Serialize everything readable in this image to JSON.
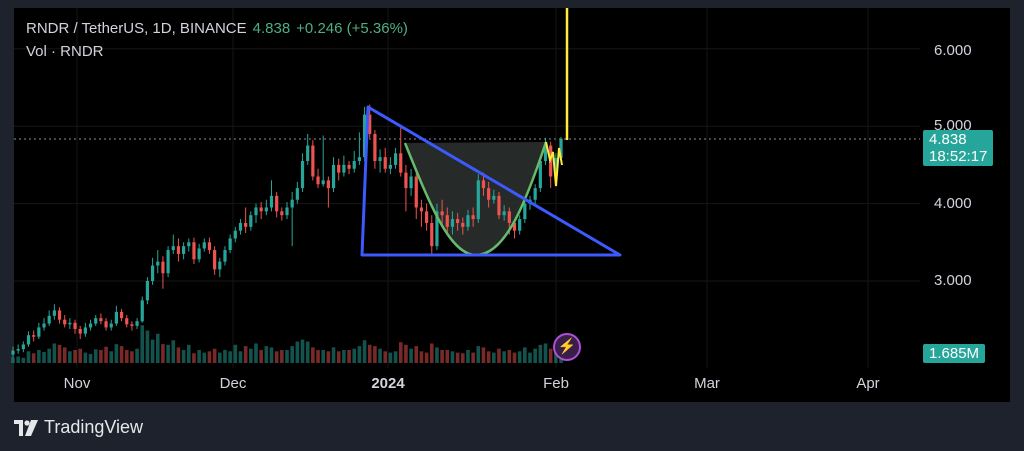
{
  "header": {
    "symbol": "RNDR / TetherUS, 1D, BINANCE",
    "last_price": "4.838",
    "change": "+0.246 (+5.36%)",
    "volume_label": "Vol · RNDR"
  },
  "price_axis": {
    "ticks": [
      "6.000",
      "5.000",
      "4.000",
      "3.000"
    ],
    "last_price_badge": "4.838",
    "countdown": "18:52:17",
    "volume_badge": "1.685M"
  },
  "time_axis": {
    "labels": [
      "Nov",
      "Dec",
      "2024",
      "Feb",
      "Mar",
      "Apr"
    ]
  },
  "footer": {
    "brand": "TradingView"
  },
  "colors": {
    "up": "#26a69a",
    "down": "#ef5350",
    "triangle": "#3d5afe",
    "cup": "#66bb6a",
    "marker": "#ffeb3b",
    "background": "#000000"
  },
  "icons": {
    "bolt_button": "lightning-icon",
    "logo": "tradingview-logo"
  },
  "chart_data": {
    "type": "candlestick",
    "title": "RNDR / TetherUS, 1D, BINANCE",
    "start_date": "2023-10-19",
    "ylim": [
      2.0,
      6.4
    ],
    "x_ticks": [
      "Nov",
      "Dec",
      "2024",
      "Feb",
      "Mar",
      "Apr"
    ],
    "y_ticks": [
      3,
      4,
      5,
      6
    ],
    "grid": true,
    "ohlc": [
      [
        2.05,
        2.15,
        2.02,
        2.1
      ],
      [
        2.1,
        2.18,
        2.06,
        2.12
      ],
      [
        2.12,
        2.22,
        2.08,
        2.18
      ],
      [
        2.18,
        2.35,
        2.15,
        2.3
      ],
      [
        2.3,
        2.36,
        2.22,
        2.28
      ],
      [
        2.28,
        2.46,
        2.25,
        2.4
      ],
      [
        2.4,
        2.52,
        2.36,
        2.45
      ],
      [
        2.45,
        2.62,
        2.42,
        2.55
      ],
      [
        2.55,
        2.7,
        2.5,
        2.62
      ],
      [
        2.62,
        2.66,
        2.45,
        2.5
      ],
      [
        2.5,
        2.56,
        2.4,
        2.44
      ],
      [
        2.44,
        2.52,
        2.38,
        2.46
      ],
      [
        2.46,
        2.5,
        2.32,
        2.38
      ],
      [
        2.38,
        2.42,
        2.25,
        2.32
      ],
      [
        2.32,
        2.46,
        2.28,
        2.4
      ],
      [
        2.4,
        2.5,
        2.36,
        2.45
      ],
      [
        2.45,
        2.56,
        2.42,
        2.52
      ],
      [
        2.52,
        2.58,
        2.44,
        2.48
      ],
      [
        2.48,
        2.52,
        2.36,
        2.4
      ],
      [
        2.4,
        2.5,
        2.36,
        2.45
      ],
      [
        2.45,
        2.68,
        2.42,
        2.6
      ],
      [
        2.6,
        2.64,
        2.48,
        2.52
      ],
      [
        2.52,
        2.56,
        2.4,
        2.44
      ],
      [
        2.44,
        2.48,
        2.36,
        2.42
      ],
      [
        2.42,
        2.52,
        2.38,
        2.48
      ],
      [
        2.48,
        2.8,
        2.46,
        2.75
      ],
      [
        2.75,
        3.05,
        2.7,
        3.0
      ],
      [
        3.0,
        3.3,
        2.95,
        3.2
      ],
      [
        3.2,
        3.4,
        3.1,
        3.25
      ],
      [
        3.25,
        3.32,
        2.9,
        3.1
      ],
      [
        3.1,
        3.45,
        3.05,
        3.4
      ],
      [
        3.4,
        3.6,
        3.35,
        3.45
      ],
      [
        3.45,
        3.55,
        3.25,
        3.35
      ],
      [
        3.35,
        3.5,
        3.28,
        3.45
      ],
      [
        3.45,
        3.55,
        3.38,
        3.5
      ],
      [
        3.5,
        3.56,
        3.22,
        3.28
      ],
      [
        3.28,
        3.48,
        3.24,
        3.42
      ],
      [
        3.42,
        3.55,
        3.38,
        3.5
      ],
      [
        3.5,
        3.56,
        3.35,
        3.4
      ],
      [
        3.4,
        3.45,
        3.08,
        3.15
      ],
      [
        3.15,
        3.3,
        3.05,
        3.25
      ],
      [
        3.25,
        3.45,
        3.2,
        3.4
      ],
      [
        3.4,
        3.6,
        3.36,
        3.55
      ],
      [
        3.55,
        3.7,
        3.5,
        3.65
      ],
      [
        3.65,
        3.8,
        3.6,
        3.75
      ],
      [
        3.75,
        3.95,
        3.62,
        3.7
      ],
      [
        3.7,
        3.9,
        3.65,
        3.85
      ],
      [
        3.85,
        4.0,
        3.75,
        3.95
      ],
      [
        3.95,
        4.02,
        3.8,
        3.9
      ],
      [
        3.9,
        4.05,
        3.85,
        3.95
      ],
      [
        3.95,
        4.3,
        3.9,
        4.1
      ],
      [
        4.1,
        4.15,
        3.82,
        3.9
      ],
      [
        3.9,
        3.95,
        3.78,
        3.85
      ],
      [
        3.85,
        4.02,
        3.8,
        3.95
      ],
      [
        3.95,
        4.15,
        3.45,
        4.05
      ],
      [
        4.05,
        4.28,
        4.0,
        4.2
      ],
      [
        4.2,
        4.65,
        4.15,
        4.55
      ],
      [
        4.55,
        4.9,
        4.5,
        4.75
      ],
      [
        4.75,
        4.82,
        4.3,
        4.35
      ],
      [
        4.35,
        4.45,
        4.2,
        4.25
      ],
      [
        4.25,
        4.88,
        4.22,
        4.3
      ],
      [
        4.3,
        4.35,
        3.95,
        4.2
      ],
      [
        4.2,
        4.6,
        4.15,
        4.5
      ],
      [
        4.5,
        4.58,
        4.3,
        4.4
      ],
      [
        4.4,
        4.62,
        4.35,
        4.5
      ],
      [
        4.5,
        4.55,
        4.38,
        4.45
      ],
      [
        4.45,
        4.68,
        4.4,
        4.55
      ],
      [
        4.55,
        4.92,
        4.5,
        4.6
      ],
      [
        4.6,
        5.25,
        4.55,
        5.15
      ],
      [
        5.15,
        5.28,
        4.85,
        4.9
      ],
      [
        4.9,
        4.95,
        4.45,
        4.55
      ],
      [
        4.55,
        4.7,
        4.4,
        4.6
      ],
      [
        4.6,
        4.72,
        4.4,
        4.45
      ],
      [
        4.45,
        4.6,
        4.38,
        4.5
      ],
      [
        4.5,
        4.72,
        4.45,
        4.65
      ],
      [
        4.65,
        5.02,
        4.35,
        4.4
      ],
      [
        4.4,
        4.5,
        3.9,
        4.2
      ],
      [
        4.2,
        4.45,
        4.1,
        4.35
      ],
      [
        4.35,
        4.4,
        3.8,
        3.95
      ],
      [
        3.95,
        4.05,
        3.7,
        3.9
      ],
      [
        3.9,
        4.0,
        3.65,
        3.75
      ],
      [
        3.75,
        3.85,
        3.35,
        3.45
      ],
      [
        3.45,
        4.0,
        3.4,
        3.9
      ],
      [
        3.9,
        4.05,
        3.7,
        3.85
      ],
      [
        3.85,
        3.95,
        3.6,
        3.7
      ],
      [
        3.7,
        3.9,
        3.6,
        3.8
      ],
      [
        3.8,
        3.88,
        3.65,
        3.75
      ],
      [
        3.75,
        3.82,
        3.6,
        3.7
      ],
      [
        3.7,
        3.92,
        3.65,
        3.85
      ],
      [
        3.85,
        3.95,
        3.7,
        3.8
      ],
      [
        3.8,
        4.38,
        3.75,
        4.3
      ],
      [
        4.3,
        4.4,
        4.1,
        4.2
      ],
      [
        4.2,
        4.28,
        3.95,
        4.05
      ],
      [
        4.05,
        4.18,
        4.0,
        4.1
      ],
      [
        4.1,
        4.15,
        3.8,
        3.85
      ],
      [
        3.85,
        3.98,
        3.78,
        3.9
      ],
      [
        3.9,
        3.95,
        3.6,
        3.75
      ],
      [
        3.75,
        3.8,
        3.55,
        3.65
      ],
      [
        3.65,
        3.85,
        3.6,
        3.8
      ],
      [
        3.8,
        4.05,
        3.75,
        4.0
      ],
      [
        4.0,
        4.1,
        3.92,
        4.05
      ],
      [
        4.05,
        4.25,
        4.0,
        4.2
      ],
      [
        4.2,
        4.6,
        4.15,
        4.55
      ],
      [
        4.55,
        4.85,
        4.5,
        4.75
      ],
      [
        4.75,
        4.8,
        4.2,
        4.35
      ],
      [
        4.35,
        4.65,
        4.3,
        4.59
      ],
      [
        4.59,
        4.86,
        4.55,
        4.838
      ]
    ],
    "volume_millions": [
      0.9,
      1.0,
      0.8,
      1.8,
      1.5,
      2.0,
      1.7,
      2.2,
      3.0,
      2.8,
      2.4,
      1.8,
      2.0,
      2.2,
      1.6,
      1.4,
      2.1,
      2.0,
      2.5,
      1.8,
      2.9,
      2.6,
      2.0,
      1.8,
      2.2,
      5.8,
      5.0,
      3.6,
      4.5,
      2.9,
      2.8,
      3.5,
      2.4,
      2.0,
      2.8,
      1.5,
      2.0,
      1.6,
      1.8,
      2.2,
      1.6,
      2.0,
      1.8,
      2.8,
      1.8,
      2.6,
      2.2,
      3.0,
      2.0,
      2.6,
      2.4,
      1.8,
      2.0,
      2.0,
      2.6,
      3.3,
      3.6,
      3.3,
      2.4,
      2.0,
      2.0,
      1.8,
      2.4,
      1.8,
      2.0,
      2.0,
      2.2,
      2.6,
      3.5,
      2.8,
      2.6,
      2.2,
      1.8,
      1.6,
      1.8,
      3.2,
      2.8,
      2.2,
      2.6,
      1.8,
      1.6,
      3.0,
      2.4,
      2.0,
      2.0,
      1.8,
      1.6,
      1.5,
      2.0,
      1.6,
      2.6,
      2.4,
      1.8,
      1.6,
      2.2,
      1.8,
      2.0,
      1.6,
      1.8,
      2.4,
      1.6,
      2.2,
      2.8,
      3.0,
      2.2,
      2.4,
      1.685
    ]
  }
}
